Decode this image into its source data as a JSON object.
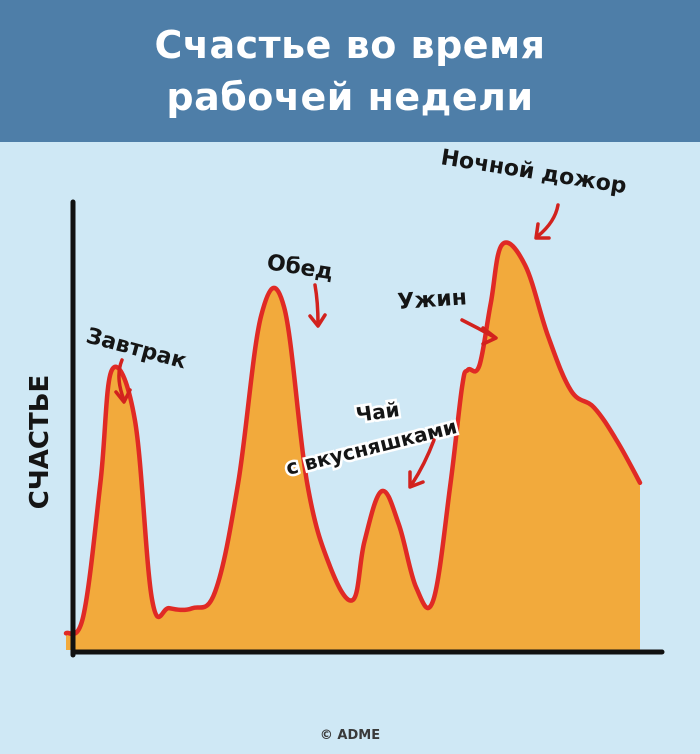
{
  "header": {
    "title_line1": "Счастье во время",
    "title_line2": "рабочей недели"
  },
  "colors": {
    "header_bg": "#4e7ea8",
    "background": "#cfe8f5",
    "fill": "#f2aa3c",
    "line": "#e02a25",
    "arrow": "#d2221e",
    "axis": "#111111"
  },
  "credit": "© ADME",
  "chart_data": {
    "type": "area",
    "title": "Счастье во время рабочей недели",
    "ylabel": "СЧАСТЬЕ",
    "xlabel": "",
    "x_ticks": false,
    "y_ticks": false,
    "grid": false,
    "legend": "none",
    "x": [
      0,
      3,
      6,
      8,
      12,
      15,
      18,
      22,
      26,
      30,
      34,
      38,
      42,
      46,
      50,
      52,
      55,
      58,
      61,
      64,
      67,
      69,
      70,
      72,
      74,
      76,
      80,
      84,
      88,
      92,
      96,
      100
    ],
    "values": [
      4,
      8,
      40,
      67,
      55,
      12,
      10,
      10,
      14,
      40,
      80,
      82,
      40,
      20,
      12,
      26,
      38,
      30,
      15,
      12,
      40,
      63,
      67,
      68,
      83,
      97,
      92,
      75,
      62,
      58,
      50,
      40
    ],
    "annotations": [
      {
        "label": "Завтрак",
        "x": 8,
        "y": 67
      },
      {
        "label": "Обед",
        "x": 36,
        "y": 84
      },
      {
        "label": "Чай",
        "x": 52,
        "y": 40
      },
      {
        "label": "с вкусняшками",
        "x": 52,
        "y": 40
      },
      {
        "label": "Ужин",
        "x": 69,
        "y": 68
      },
      {
        "label": "Ночной дожор",
        "x": 76,
        "y": 98
      }
    ]
  }
}
